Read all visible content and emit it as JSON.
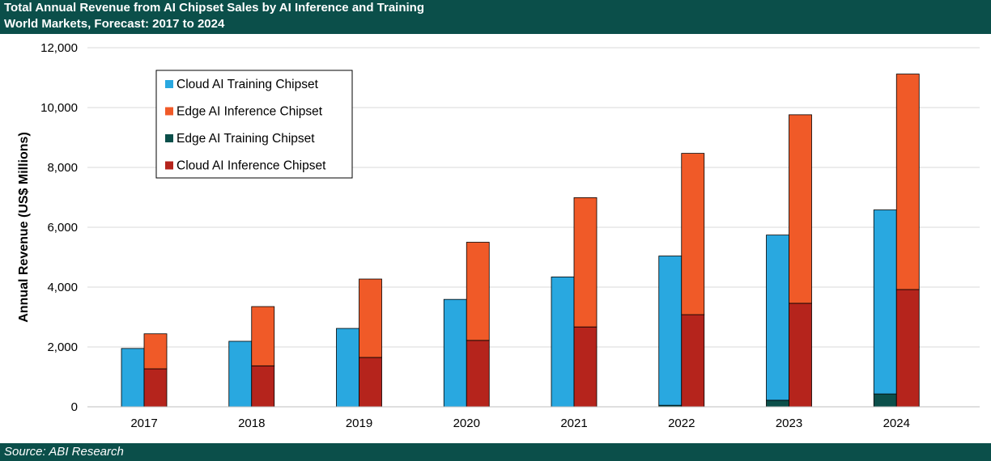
{
  "header": {
    "title_line1": "Total Annual Revenue from AI Chipset Sales by AI Inference and Training",
    "title_line2": "World Markets, Forecast: 2017 to 2024"
  },
  "footer": {
    "source": "Source: ABI Research"
  },
  "colors": {
    "header_bg": "#0b4f4a",
    "cloud_training": "#29a8e0",
    "edge_inference": "#f05a28",
    "edge_training": "#0b4f4a",
    "cloud_inference": "#b5241c"
  },
  "chart_data": {
    "type": "bar",
    "subtype": "grouped-stacked",
    "title": "Total Annual Revenue from AI Chipset Sales by AI Inference and Training",
    "subtitle": "World Markets, Forecast: 2017 to 2024",
    "xlabel": "",
    "ylabel": "Annual Revenue (US$ Millions)",
    "ylim": [
      0,
      12000
    ],
    "yticks": [
      0,
      2000,
      4000,
      6000,
      8000,
      10000,
      12000
    ],
    "ytick_labels": [
      "0",
      "2,000",
      "4,000",
      "6,000",
      "8,000",
      "10,000",
      "12,000"
    ],
    "grid": true,
    "legend_position": "top-left",
    "categories": [
      "2017",
      "2018",
      "2019",
      "2020",
      "2021",
      "2022",
      "2023",
      "2024"
    ],
    "series": [
      {
        "name": "Cloud AI Training Chipset",
        "stack": "training",
        "color": "#29a8e0",
        "values": [
          1950,
          2190,
          2620,
          3590,
          4340,
          4990,
          5520,
          6150
        ]
      },
      {
        "name": "Edge AI Inference Chipset",
        "stack": "inference",
        "color": "#f05a28",
        "values": [
          1170,
          1980,
          2620,
          3280,
          4320,
          5390,
          6300,
          7200
        ]
      },
      {
        "name": "Edge AI Training Chipset",
        "stack": "training",
        "color": "#0b4f4a",
        "values": [
          0,
          0,
          0,
          0,
          0,
          50,
          220,
          430
        ]
      },
      {
        "name": "Cloud AI Inference Chipset",
        "stack": "inference",
        "color": "#b5241c",
        "values": [
          1270,
          1370,
          1650,
          2220,
          2670,
          3080,
          3460,
          3920
        ]
      }
    ]
  }
}
